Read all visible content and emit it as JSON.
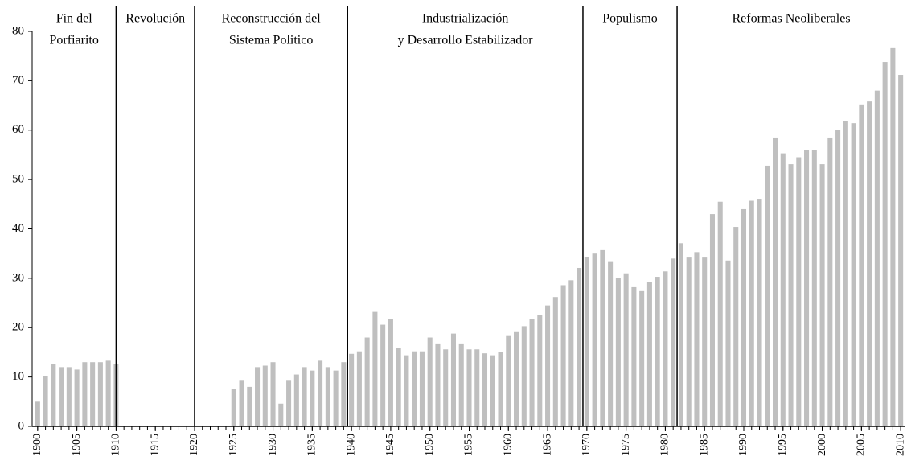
{
  "chart_data": {
    "type": "bar",
    "x": [
      1900,
      1901,
      1902,
      1903,
      1904,
      1905,
      1906,
      1907,
      1908,
      1909,
      1910,
      1911,
      1912,
      1913,
      1914,
      1915,
      1916,
      1917,
      1918,
      1919,
      1920,
      1921,
      1922,
      1923,
      1924,
      1925,
      1926,
      1927,
      1928,
      1929,
      1930,
      1931,
      1932,
      1933,
      1934,
      1935,
      1936,
      1937,
      1938,
      1939,
      1940,
      1941,
      1942,
      1943,
      1944,
      1945,
      1946,
      1947,
      1948,
      1949,
      1950,
      1951,
      1952,
      1953,
      1954,
      1955,
      1956,
      1957,
      1958,
      1959,
      1960,
      1961,
      1962,
      1963,
      1964,
      1965,
      1966,
      1967,
      1968,
      1969,
      1970,
      1971,
      1972,
      1973,
      1974,
      1975,
      1976,
      1977,
      1978,
      1979,
      1980,
      1981,
      1982,
      1983,
      1984,
      1985,
      1986,
      1987,
      1988,
      1989,
      1990,
      1991,
      1992,
      1993,
      1994,
      1995,
      1996,
      1997,
      1998,
      1999,
      2000,
      2001,
      2002,
      2003,
      2004,
      2005,
      2006,
      2007,
      2008,
      2009,
      2010
    ],
    "values": [
      5,
      10.2,
      12.6,
      12,
      12,
      11.5,
      13,
      13,
      13,
      13.3,
      12.7,
      null,
      null,
      null,
      null,
      null,
      null,
      null,
      null,
      null,
      null,
      null,
      null,
      null,
      null,
      7.6,
      9.4,
      8,
      12,
      12.3,
      13,
      4.6,
      9.4,
      10.5,
      12,
      11.3,
      13.3,
      12,
      11.3,
      13,
      14.7,
      15.2,
      18,
      23.2,
      20.6,
      21.7,
      15.9,
      14.4,
      15.2,
      15.2,
      18,
      16.8,
      15.6,
      18.8,
      16.8,
      15.6,
      15.6,
      14.8,
      14.4,
      15,
      18.3,
      19.1,
      20.3,
      21.7,
      22.6,
      24.5,
      26.2,
      28.6,
      29.6,
      32.1,
      34.3,
      35,
      35.7,
      33.3,
      30,
      31,
      28.2,
      27.4,
      29.2,
      30.3,
      31.4,
      34,
      37.1,
      34.2,
      35.3,
      34.2,
      43,
      45.5,
      33.6,
      40.4,
      44,
      45.7,
      46.1,
      52.8,
      58.5,
      55.3,
      53.1,
      54.5,
      56,
      56,
      53.1,
      58.5,
      60,
      61.9,
      61.4,
      65.2,
      65.8,
      68,
      73.8,
      76.6,
      71.2
    ],
    "color": "#bfbfbf",
    "xlim": [
      1899.3,
      2010.6
    ],
    "xticks": [
      1900,
      1905,
      1910,
      1915,
      1920,
      1925,
      1930,
      1935,
      1940,
      1945,
      1950,
      1955,
      1960,
      1965,
      1970,
      1975,
      1980,
      1985,
      1990,
      1995,
      2000,
      2005,
      2010
    ],
    "ylim": [
      0,
      80
    ],
    "yticks": [
      0,
      10,
      20,
      30,
      40,
      50,
      60,
      70,
      80
    ],
    "dividers": [
      1910,
      1920,
      1939.5,
      1969.5,
      1981.5
    ],
    "periods": [
      [
        "Fin del",
        "Porfiarito"
      ],
      [
        "Revolución"
      ],
      [
        "Reconstrucción del",
        "Sistema Politico"
      ],
      [
        "Industrialización",
        "y Desarrollo Estabilizador"
      ],
      [
        "Populismo"
      ],
      [
        "Reformas Neoliberales"
      ]
    ]
  }
}
